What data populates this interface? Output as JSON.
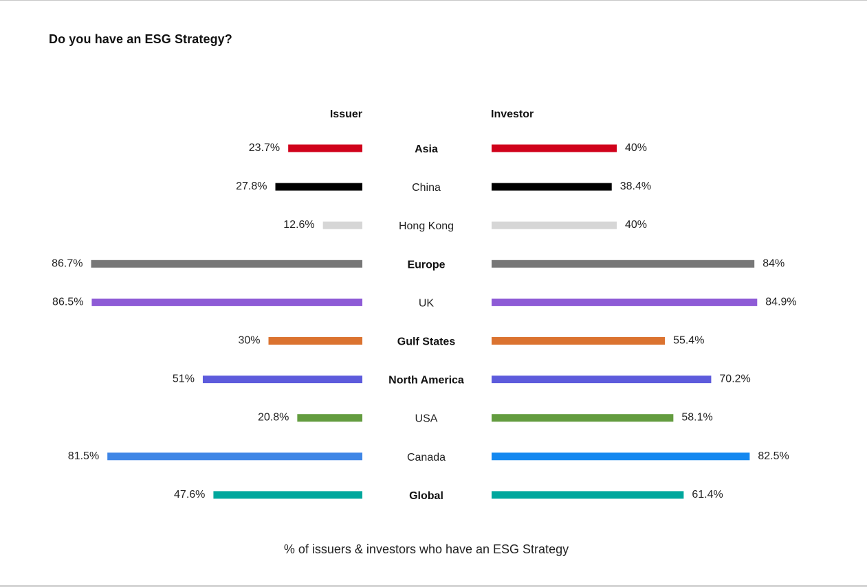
{
  "title": "Do you have an ESG Strategy?",
  "caption": "% of issuers & investors who have an ESG Strategy",
  "chart_data": {
    "type": "bar",
    "orientation": "horizontal-butterfly",
    "xlim": [
      0,
      100
    ],
    "grid": false,
    "legend": "none",
    "categories": [
      "Asia",
      "China",
      "Hong Kong",
      "Europe",
      "UK",
      "Gulf States",
      "North America",
      "USA",
      "Canada",
      "Global"
    ],
    "category_bold": [
      true,
      false,
      false,
      true,
      false,
      true,
      true,
      false,
      false,
      true
    ],
    "colors": [
      "#d0021b",
      "#000000",
      "#d6d6d6",
      "#777777",
      "#8e5bd6",
      "#db7330",
      "#5d5bdc",
      "#639c3f",
      "#3f86e6",
      "#00a79d"
    ],
    "investor_colors": [
      "#d0021b",
      "#000000",
      "#d6d6d6",
      "#777777",
      "#8e5bd6",
      "#db7330",
      "#5d5bdc",
      "#639c3f",
      "#1488f0",
      "#00a79d"
    ],
    "series": [
      {
        "name": "Issuer",
        "values": [
          23.7,
          27.8,
          12.6,
          86.7,
          86.5,
          30,
          51,
          20.8,
          81.5,
          47.6
        ],
        "labels": [
          "23.7%",
          "27.8%",
          "12.6%",
          "86.7%",
          "86.5%",
          "30%",
          "51%",
          "20.8%",
          "81.5%",
          "47.6%"
        ]
      },
      {
        "name": "Investor",
        "values": [
          40,
          38.4,
          40,
          84,
          84.9,
          55.4,
          70.2,
          58.1,
          82.5,
          61.4
        ],
        "labels": [
          "40%",
          "38.4%",
          "40%",
          "84%",
          "84.9%",
          "55.4%",
          "70.2%",
          "58.1%",
          "82.5%",
          "61.4%"
        ]
      }
    ]
  }
}
